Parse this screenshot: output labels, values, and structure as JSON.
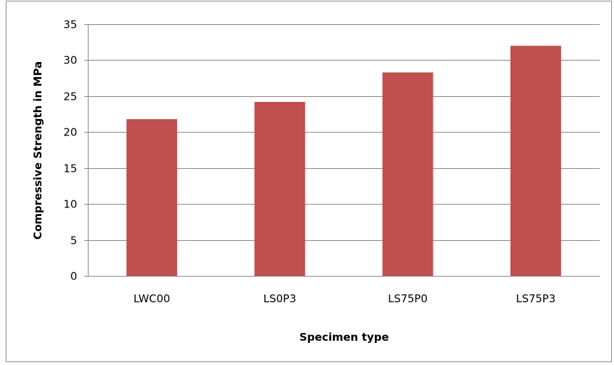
{
  "chart_data": {
    "type": "bar",
    "title": "",
    "xlabel": "Specimen type",
    "ylabel": "Compressive Strength in MPa",
    "categories": [
      "LWC00",
      "LS0P3",
      "LS75P0",
      "LS75P3"
    ],
    "values": [
      21.8,
      24.2,
      28.3,
      32.0
    ],
    "ylim": [
      0,
      35
    ],
    "yticks": [
      0,
      5,
      10,
      15,
      20,
      25,
      30,
      35
    ],
    "grid": true,
    "legend": "none",
    "bar_color": "#c0504d",
    "gridline_color": "#868686"
  }
}
